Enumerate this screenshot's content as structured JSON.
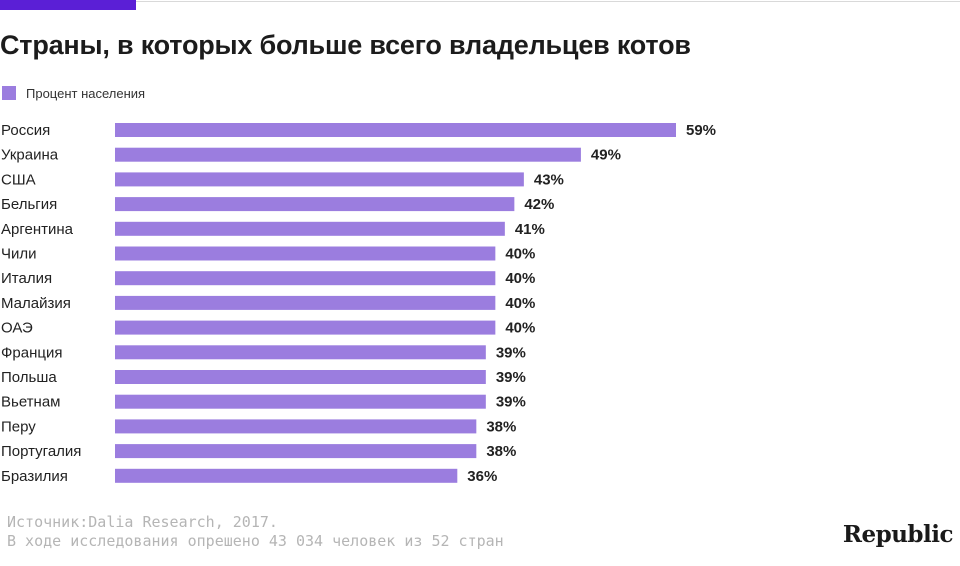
{
  "title": "Страны, в которых больше всего владельцев котов",
  "legend": {
    "label": "Процент населения",
    "color": "#9b7ddf"
  },
  "chart_data": {
    "type": "bar",
    "orientation": "horizontal",
    "title": "Страны, в которых больше всего владельцев котов",
    "categories": [
      "Россия",
      "Украина",
      "США",
      "Бельгия",
      "Аргентина",
      "Чили",
      "Италия",
      "Малайзия",
      "ОАЭ",
      "Франция",
      "Польша",
      "Вьетнам",
      "Перу",
      "Португалия",
      "Бразилия"
    ],
    "values": [
      59,
      49,
      43,
      42,
      41,
      40,
      40,
      40,
      40,
      39,
      39,
      39,
      38,
      38,
      36
    ],
    "value_labels": [
      "59%",
      "49%",
      "43%",
      "42%",
      "41%",
      "40%",
      "40%",
      "40%",
      "40%",
      "39%",
      "39%",
      "39%",
      "38%",
      "38%",
      "36%"
    ],
    "series_name": "Процент населения",
    "xlabel": "",
    "ylabel": "",
    "xlim": [
      0,
      59
    ],
    "grid": false,
    "legend_position": "top-left",
    "bar_color": "#9b7ddf"
  },
  "footer": {
    "source": "Источник:Dalia Research, 2017.",
    "note": "В ходе исследования опрешено 43 034 человек из 52 стран"
  },
  "brand": "Republic",
  "colors": {
    "accent": "#5b1fd6",
    "bar": "#9b7ddf",
    "text": "#1f1f1f",
    "muted": "#b5b5b5"
  }
}
